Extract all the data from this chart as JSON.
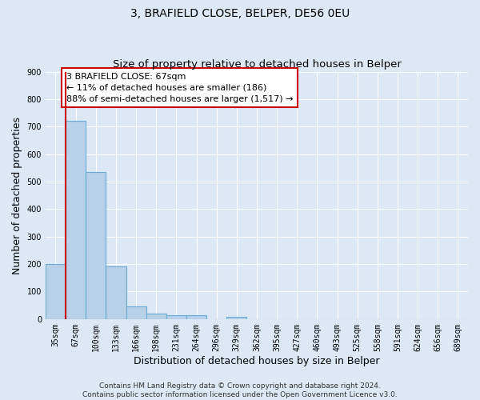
{
  "title": "3, BRAFIELD CLOSE, BELPER, DE56 0EU",
  "subtitle": "Size of property relative to detached houses in Belper",
  "xlabel": "Distribution of detached houses by size in Belper",
  "ylabel": "Number of detached properties",
  "categories": [
    "35sqm",
    "67sqm",
    "100sqm",
    "133sqm",
    "166sqm",
    "198sqm",
    "231sqm",
    "264sqm",
    "296sqm",
    "329sqm",
    "362sqm",
    "395sqm",
    "427sqm",
    "460sqm",
    "493sqm",
    "525sqm",
    "558sqm",
    "591sqm",
    "624sqm",
    "656sqm",
    "689sqm"
  ],
  "values": [
    200,
    720,
    535,
    193,
    46,
    20,
    14,
    13,
    0,
    8,
    0,
    0,
    0,
    0,
    0,
    0,
    0,
    0,
    0,
    0,
    0
  ],
  "bar_color": "#b8d0e8",
  "bar_edge_color": "#6aaad4",
  "highlight_bar_index": 1,
  "vline_color": "#cc0000",
  "annotation_box_text": "3 BRAFIELD CLOSE: 67sqm\n← 11% of detached houses are smaller (186)\n88% of semi-detached houses are larger (1,517) →",
  "ylim": [
    0,
    900
  ],
  "yticks": [
    0,
    100,
    200,
    300,
    400,
    500,
    600,
    700,
    800,
    900
  ],
  "footer1": "Contains HM Land Registry data © Crown copyright and database right 2024.",
  "footer2": "Contains public sector information licensed under the Open Government Licence v3.0.",
  "bg_color": "#dce8f5",
  "plot_bg_color": "#dce8f5",
  "title_fontsize": 10,
  "axis_label_fontsize": 9,
  "tick_fontsize": 7,
  "annotation_fontsize": 8,
  "footer_fontsize": 6.5
}
